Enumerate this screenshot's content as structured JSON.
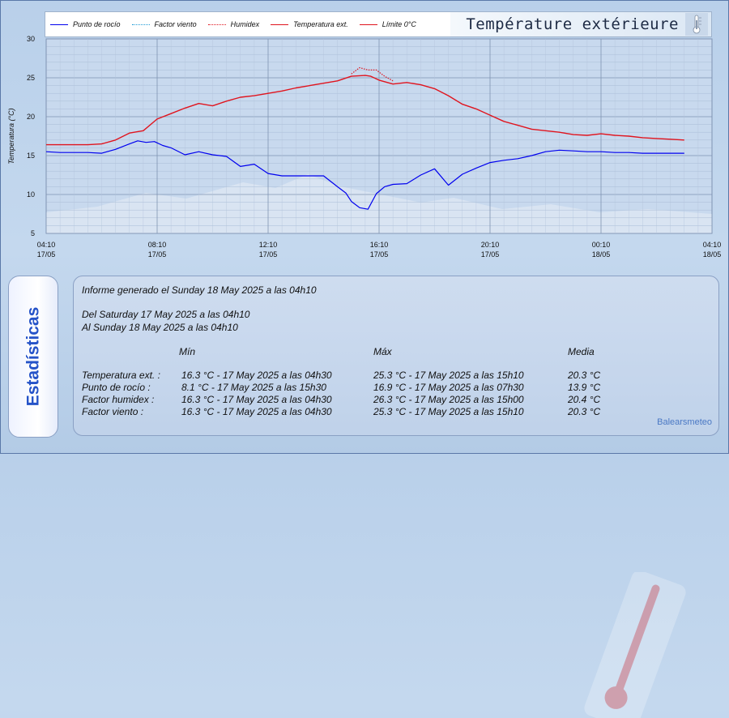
{
  "colors": {
    "dew_point": "#0000ee",
    "wind_factor": "#1e9ad6",
    "humidex": "#e0141e",
    "temperature": "#e0141e",
    "limit_zero": "#e0141e",
    "accent": "#2553c8"
  },
  "legend": [
    {
      "label": "Punto de rocío",
      "color": "#0000ee",
      "style": "solid"
    },
    {
      "label": "Factor viento",
      "color": "#1e9ad6",
      "style": "dotted"
    },
    {
      "label": "Humidex",
      "color": "#e0141e",
      "style": "dotted"
    },
    {
      "label": "Temperatura ext.",
      "color": "#e0141e",
      "style": "solid"
    },
    {
      "label": "Límite 0°C",
      "color": "#e0141e",
      "style": "solid"
    }
  ],
  "header": {
    "title": "Température extérieure",
    "icon": "thermometer-icon"
  },
  "chart_data": {
    "type": "line",
    "ylabel": "Temperatura (°C)",
    "ylim": [
      5,
      30
    ],
    "yticks": [
      "5",
      "10",
      "15",
      "20",
      "25",
      "30"
    ],
    "x_range_hours": [
      0,
      24
    ],
    "xticks": [
      {
        "time": "04:10",
        "date": "17/05"
      },
      {
        "time": "08:10",
        "date": "17/05"
      },
      {
        "time": "12:10",
        "date": "17/05"
      },
      {
        "time": "16:10",
        "date": "17/05"
      },
      {
        "time": "20:10",
        "date": "17/05"
      },
      {
        "time": "00:10",
        "date": "18/05"
      },
      {
        "time": "04:10",
        "date": "18/05"
      }
    ],
    "grid": true,
    "series": [
      {
        "name": "Temperatura ext.",
        "x": [
          0.0,
          0.5,
          1.0,
          1.5,
          2.0,
          2.5,
          3.0,
          3.5,
          4.0,
          4.5,
          5.0,
          5.5,
          6.0,
          6.5,
          7.0,
          7.5,
          8.0,
          8.5,
          9.0,
          9.5,
          10.0,
          10.5,
          11.0,
          11.5,
          11.7,
          12.0,
          12.5,
          13.0,
          13.5,
          14.0,
          14.5,
          15.0,
          15.5,
          16.0,
          16.5,
          17.0,
          17.5,
          18.0,
          18.5,
          19.0,
          19.5,
          20.0,
          20.5,
          21.0,
          21.5,
          22.0,
          22.5,
          23.0
        ],
        "values": [
          16.4,
          16.4,
          16.4,
          16.4,
          16.5,
          17.0,
          17.9,
          18.2,
          19.7,
          20.4,
          21.1,
          21.7,
          21.4,
          22.0,
          22.5,
          22.7,
          23.0,
          23.3,
          23.7,
          24.0,
          24.3,
          24.6,
          25.2,
          25.3,
          25.2,
          24.7,
          24.2,
          24.4,
          24.1,
          23.6,
          22.7,
          21.6,
          21.0,
          20.2,
          19.4,
          18.9,
          18.4,
          18.2,
          18.0,
          17.7,
          17.6,
          17.8,
          17.6,
          17.5,
          17.3,
          17.2,
          17.1,
          17.0
        ]
      },
      {
        "name": "Punto de rocío",
        "x": [
          0.0,
          0.5,
          1.0,
          1.5,
          2.0,
          2.5,
          3.0,
          3.3,
          3.6,
          3.9,
          4.2,
          4.5,
          5.0,
          5.5,
          6.0,
          6.5,
          7.0,
          7.5,
          8.0,
          8.5,
          9.0,
          9.5,
          10.0,
          10.5,
          10.8,
          11.0,
          11.3,
          11.6,
          11.9,
          12.2,
          12.5,
          13.0,
          13.5,
          14.0,
          14.5,
          15.0,
          15.5,
          16.0,
          16.5,
          17.0,
          17.5,
          18.0,
          18.5,
          19.0,
          19.5,
          20.0,
          20.5,
          21.0,
          21.5,
          22.0,
          22.5,
          23.0
        ],
        "values": [
          15.5,
          15.4,
          15.4,
          15.4,
          15.3,
          15.8,
          16.5,
          16.9,
          16.7,
          16.8,
          16.3,
          16.0,
          15.1,
          15.5,
          15.1,
          14.9,
          13.6,
          13.9,
          12.7,
          12.4,
          12.4,
          12.4,
          12.4,
          11.0,
          10.2,
          9.1,
          8.3,
          8.1,
          10.1,
          11.0,
          11.3,
          11.4,
          12.5,
          13.3,
          11.2,
          12.6,
          13.4,
          14.1,
          14.4,
          14.6,
          15.0,
          15.5,
          15.7,
          15.6,
          15.5,
          15.5,
          15.4,
          15.4,
          15.3,
          15.3,
          15.3,
          15.3
        ]
      },
      {
        "name": "Humidex",
        "x": [
          11.0,
          11.3,
          11.6,
          11.9,
          12.2,
          12.5
        ],
        "values": [
          25.5,
          26.3,
          26.0,
          26.0,
          25.2,
          24.6
        ]
      }
    ]
  },
  "stats": {
    "side_label": "Estadísticas",
    "generated": "Informe generado el Sunday 18 May 2025 a las 04h10",
    "from": "Del Saturday 17 May 2025 a las 04h10",
    "to": "Al Sunday 18 May 2025 a las 04h10",
    "col_min": "Mín",
    "col_max": "Máx",
    "col_avg": "Media",
    "rows": [
      {
        "label": "Temperatura ext. :",
        "min": "16.3 °C - 17 May 2025 a las 04h30",
        "max": "25.3 °C - 17 May 2025 a las 15h10",
        "avg": "20.3 °C"
      },
      {
        "label": "Punto de rocío :",
        "min": "8.1 °C - 17 May 2025 a las 15h30",
        "max": "16.9 °C - 17 May 2025 a las 07h30",
        "avg": "13.9 °C"
      },
      {
        "label": "Factor humidex :",
        "min": "16.3 °C - 17 May 2025 a las 04h30",
        "max": "26.3 °C - 17 May 2025 a las 15h00",
        "avg": "20.4 °C"
      },
      {
        "label": "Factor viento :",
        "min": "16.3 °C - 17 May 2025 a las 04h30",
        "max": "25.3 °C - 17 May 2025 a las 15h10",
        "avg": "20.3 °C"
      }
    ],
    "brand": "Balearsmeteo"
  }
}
